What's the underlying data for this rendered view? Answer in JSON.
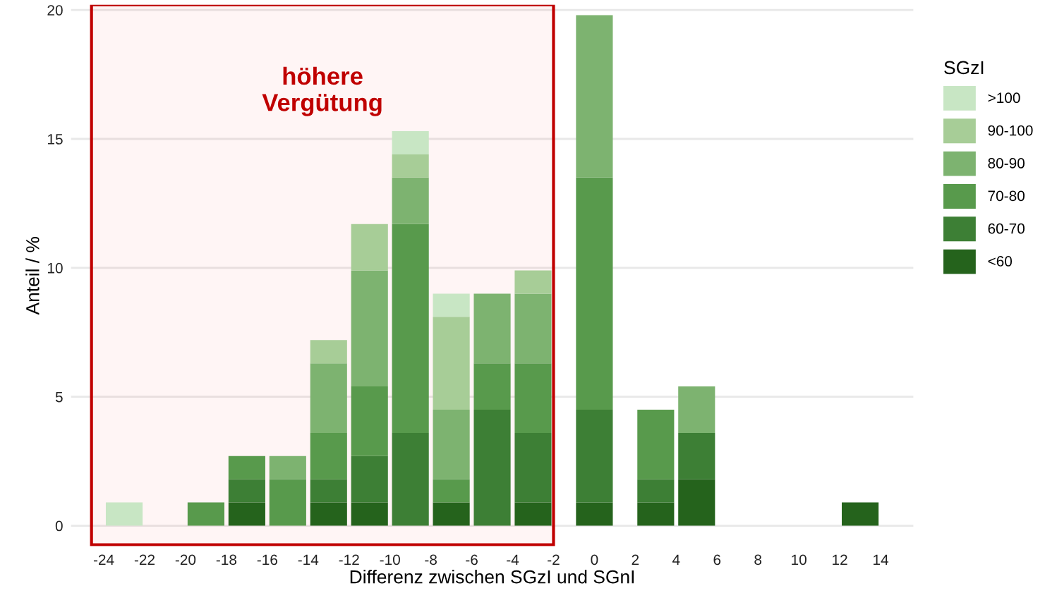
{
  "chart_data": {
    "type": "bar",
    "stacked": true,
    "xlabel": "Differenz zwischen SGzI und SGnI",
    "ylabel": "Anteil / %",
    "legend_title": "SGzI",
    "legend": "right",
    "grid": "y",
    "x": [
      -23,
      -19,
      -17,
      -15,
      -13,
      -11,
      -9,
      -7,
      -5,
      -3,
      0,
      3,
      5,
      13
    ],
    "series": [
      {
        "name": "<60",
        "color": "#25631c",
        "values": [
          null,
          null,
          0.9,
          null,
          0.9,
          0.9,
          null,
          0.9,
          null,
          0.9,
          0.9,
          0.9,
          1.8,
          0.9
        ]
      },
      {
        "name": "60-70",
        "color": "#3d7f35",
        "values": [
          null,
          null,
          0.9,
          null,
          0.9,
          1.8,
          3.6,
          null,
          4.5,
          2.7,
          3.6,
          0.9,
          1.8,
          null
        ]
      },
      {
        "name": "70-80",
        "color": "#589a4c",
        "values": [
          null,
          0.9,
          0.9,
          1.8,
          1.8,
          2.7,
          8.1,
          0.9,
          1.8,
          2.7,
          9.0,
          2.7,
          null,
          null
        ]
      },
      {
        "name": "80-90",
        "color": "#7db370",
        "values": [
          null,
          null,
          null,
          0.9,
          2.7,
          4.5,
          1.8,
          2.7,
          2.7,
          2.7,
          6.3,
          null,
          1.8,
          null
        ]
      },
      {
        "name": "90-100",
        "color": "#a7cd97",
        "values": [
          null,
          null,
          null,
          null,
          0.9,
          1.8,
          0.9,
          3.6,
          null,
          0.9,
          null,
          null,
          null,
          null
        ]
      },
      {
        "name": ">100",
        "color": "#c8e6c4",
        "values": [
          0.9,
          null,
          null,
          null,
          null,
          null,
          0.9,
          0.9,
          null,
          null,
          null,
          null,
          null,
          null
        ]
      }
    ],
    "xlim": [
      -25.6,
      15.6
    ],
    "xticks": [
      -24,
      -22,
      -20,
      -18,
      -16,
      -14,
      -12,
      -10,
      -8,
      -6,
      -4,
      -2,
      0,
      2,
      4,
      6,
      8,
      10,
      12,
      14
    ],
    "ylim": [
      -0.8,
      20.2
    ],
    "yticks": [
      0,
      5,
      10,
      15,
      20
    ],
    "bands": [
      {
        "axis": "x",
        "from": -24.6,
        "to": -2.0,
        "label": "höhere\nVergütung",
        "color": "#c00000"
      }
    ]
  }
}
